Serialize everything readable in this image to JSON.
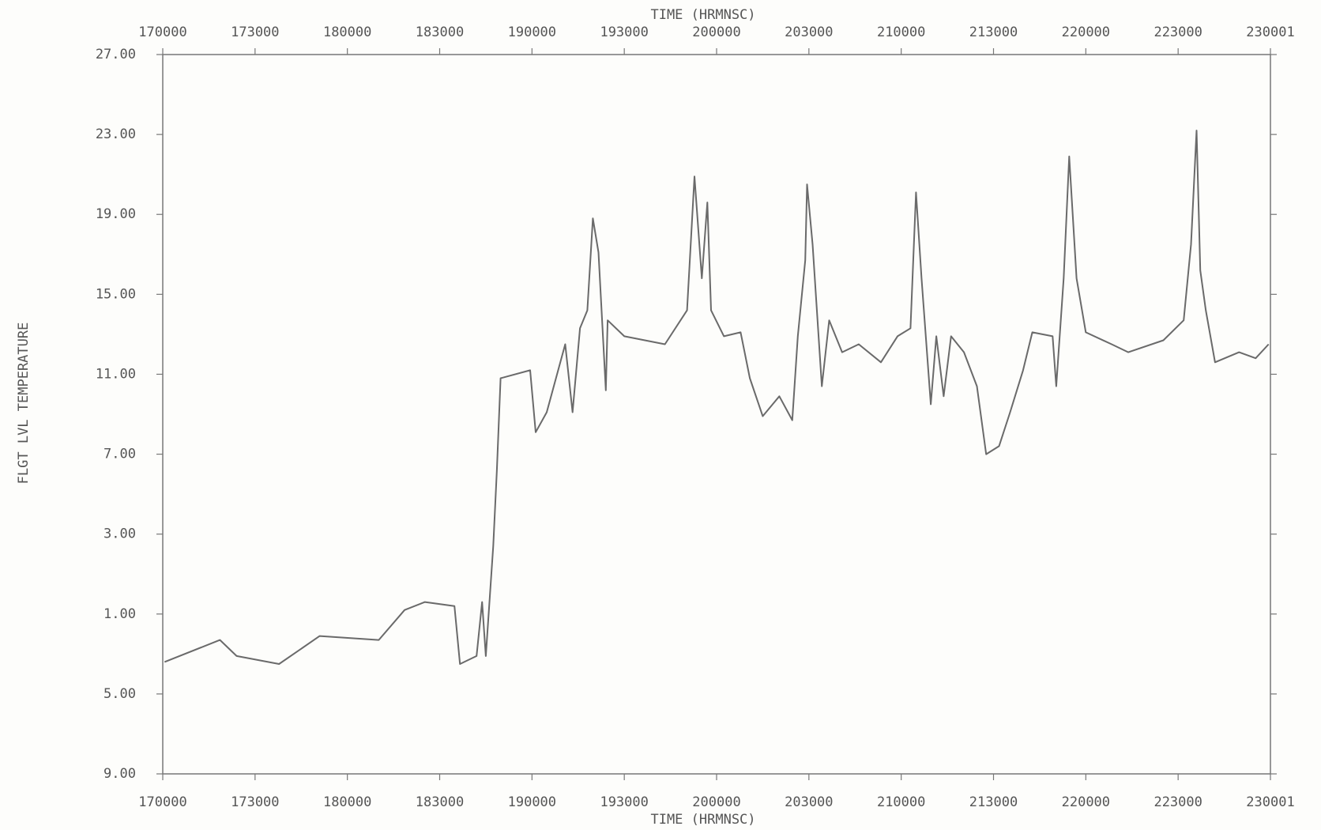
{
  "chart_data": {
    "type": "line",
    "xlabel": "TIME (HRMNSC)",
    "ylabel": "FLGT LVL TEMPERATURE",
    "xlim": [
      17,
      23
    ],
    "xticks": [
      {
        "value": 17,
        "label": "170000"
      },
      {
        "value": 17.5,
        "label": "173000"
      },
      {
        "value": 18,
        "label": "180000"
      },
      {
        "value": 18.5,
        "label": "183000"
      },
      {
        "value": 19,
        "label": "190000"
      },
      {
        "value": 19.5,
        "label": "193000"
      },
      {
        "value": 20,
        "label": "200000"
      },
      {
        "value": 20.5,
        "label": "203000"
      },
      {
        "value": 21,
        "label": "210000"
      },
      {
        "value": 21.5,
        "label": "213000"
      },
      {
        "value": 22,
        "label": "220000"
      },
      {
        "value": 22.5,
        "label": "223000"
      },
      {
        "value": 23,
        "label": "230001"
      }
    ],
    "ylim": [
      -9,
      27
    ],
    "yticks": [
      {
        "value": 27,
        "label": "27.00"
      },
      {
        "value": 23,
        "label": "23.00"
      },
      {
        "value": 19,
        "label": "19.00"
      },
      {
        "value": 15,
        "label": "15.00"
      },
      {
        "value": 11,
        "label": "11.00"
      },
      {
        "value": 7,
        "label": "7.00"
      },
      {
        "value": 3,
        "label": "3.00"
      },
      {
        "value": -1,
        "label": "1.00"
      },
      {
        "value": -5,
        "label": "5.00"
      },
      {
        "value": -9,
        "label": "9.00"
      }
    ],
    "color": "#6a6a6a",
    "x": [
      17.01,
      17.31,
      17.4,
      17.63,
      17.85,
      18.17,
      18.31,
      18.42,
      18.58,
      18.61,
      18.7,
      18.73,
      18.75,
      18.79,
      18.81,
      18.83,
      18.99,
      19.02,
      19.08,
      19.18,
      19.22,
      19.26,
      19.3,
      19.33,
      19.36,
      19.4,
      19.41,
      19.5,
      19.72,
      19.84,
      19.88,
      19.92,
      19.95,
      19.97,
      20.04,
      20.13,
      20.18,
      20.25,
      20.34,
      20.41,
      20.44,
      20.48,
      20.49,
      20.52,
      20.57,
      20.61,
      20.68,
      20.77,
      20.89,
      20.98,
      21.05,
      21.08,
      21.11,
      21.16,
      21.19,
      21.23,
      21.27,
      21.34,
      21.41,
      21.46,
      21.53,
      21.59,
      21.66,
      21.71,
      21.82,
      21.84,
      21.88,
      21.91,
      21.95,
      22.0,
      22.14,
      22.23,
      22.42,
      22.53,
      22.57,
      22.6,
      22.62,
      22.65,
      22.7,
      22.83,
      22.92,
      22.99
    ],
    "values": [
      -3.4,
      -2.3,
      -3.1,
      -3.5,
      -2.1,
      -2.3,
      -0.8,
      -0.4,
      -0.6,
      -3.5,
      -3.1,
      -0.4,
      -3.1,
      2.4,
      6.2,
      10.8,
      11.2,
      8.1,
      9.1,
      12.5,
      9.1,
      13.3,
      14.2,
      18.8,
      17.1,
      10.2,
      13.7,
      12.9,
      12.5,
      14.2,
      20.9,
      15.8,
      19.6,
      14.2,
      12.9,
      13.1,
      10.8,
      8.9,
      9.9,
      8.7,
      12.9,
      16.7,
      20.5,
      17.5,
      10.4,
      13.7,
      12.1,
      12.5,
      11.6,
      12.9,
      13.3,
      20.1,
      15.8,
      9.5,
      12.9,
      9.9,
      12.9,
      12.1,
      10.4,
      7.0,
      7.4,
      9.1,
      11.2,
      13.1,
      12.9,
      10.4,
      15.8,
      21.9,
      15.8,
      13.1,
      12.5,
      12.1,
      12.7,
      13.7,
      17.5,
      23.2,
      16.2,
      14.2,
      11.6,
      12.1,
      11.8,
      12.5
    ]
  }
}
